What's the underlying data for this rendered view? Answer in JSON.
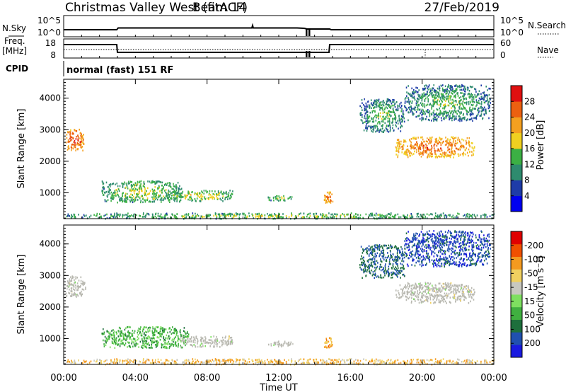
{
  "header": {
    "station": "Christmas Valley West (fitACF)",
    "beam": "Beam 14",
    "date": "27/Feb/2019"
  },
  "sky_panel": {
    "left_label": "N.Sky",
    "left_ticks": [
      "10^5",
      "10^0"
    ],
    "right_label": "N.Search",
    "right_ticks": [
      "10^5",
      "10^0"
    ]
  },
  "freq_panel": {
    "left_label": "Freq.",
    "left_unit": "[MHz]",
    "left_ticks": [
      "18",
      "8"
    ],
    "right_label": "Nave",
    "right_ticks": [
      "60",
      "0"
    ]
  },
  "cpid": {
    "label": "CPID",
    "text": "normal (fast) 151 RF"
  },
  "colors": {
    "power": [
      "#0000f0",
      "#1e3ca8",
      "#2e8b6e",
      "#3cb044",
      "#f0d020",
      "#f4a020",
      "#ec6010",
      "#e01010"
    ],
    "velocity": [
      "#e00000",
      "#f05000",
      "#f49a20",
      "#f0d060",
      "#c8c8c0",
      "#7ee060",
      "#40b040",
      "#1e6f3c",
      "#2050b0",
      "#1a1ae0"
    ],
    "ground_scatter": "#b8b8b0"
  },
  "chart_data": [
    {
      "type": "heatmap",
      "parameter": "Power",
      "ylabel": "Slant Range [km]",
      "yticks": [
        "1000",
        "2000",
        "3000",
        "4000"
      ],
      "ylim": [
        180,
        4600
      ],
      "xlim_hours": [
        0,
        24
      ],
      "colorbar_label": "Power [dB]",
      "colorbar_ticks": [
        "4",
        "8",
        "12",
        "16",
        "20",
        "24",
        "28"
      ],
      "colorbar_range": [
        0,
        32
      ],
      "echo_regions": [
        {
          "t0": 0.1,
          "t1": 1.1,
          "r0": 2350,
          "r1": 3050,
          "level": 22
        },
        {
          "t0": 2.1,
          "t1": 6.6,
          "r0": 720,
          "r1": 1400,
          "level": 11
        },
        {
          "t0": 5.7,
          "t1": 9.4,
          "r0": 760,
          "r1": 1100,
          "level": 12
        },
        {
          "t0": 11.3,
          "t1": 12.8,
          "r0": 770,
          "r1": 940,
          "level": 10
        },
        {
          "t0": 14.5,
          "t1": 15.0,
          "r0": 700,
          "r1": 1050,
          "level": 20
        },
        {
          "t0": 16.5,
          "t1": 19.0,
          "r0": 2950,
          "r1": 4000,
          "level": 8
        },
        {
          "t0": 18.5,
          "t1": 22.9,
          "r0": 2150,
          "r1": 2800,
          "level": 20
        },
        {
          "t0": 19.0,
          "t1": 23.8,
          "r0": 3300,
          "r1": 4450,
          "level": 8
        },
        {
          "t0": 0.0,
          "t1": 24.0,
          "r0": 200,
          "r1": 380,
          "level": 10
        }
      ]
    },
    {
      "type": "heatmap",
      "parameter": "Velocity",
      "ylabel": "Slant Range [km]",
      "yticks": [
        "1000",
        "2000",
        "3000",
        "4000"
      ],
      "ylim": [
        180,
        4600
      ],
      "xlim_hours": [
        0,
        24
      ],
      "xlabel": "Time UT",
      "xticks": [
        "00:00",
        "04:00",
        "08:00",
        "12:00",
        "16:00",
        "20:00",
        "00:00"
      ],
      "colorbar_label": "Velocity [m s⁻¹]",
      "colorbar_ticks": [
        "-200",
        "-100",
        "-50",
        "-15",
        "15",
        "50",
        "100",
        "200"
      ],
      "echo_regions": [
        {
          "t0": 0.1,
          "t1": 1.2,
          "r0": 2350,
          "r1": 3000,
          "velocity": 0,
          "ground": true
        },
        {
          "t0": 2.1,
          "t1": 7.0,
          "r0": 720,
          "r1": 1400,
          "velocity": 70
        },
        {
          "t0": 6.5,
          "t1": 9.4,
          "r0": 760,
          "r1": 1100,
          "velocity": 0,
          "ground": true
        },
        {
          "t0": 11.3,
          "t1": 12.8,
          "r0": 770,
          "r1": 940,
          "velocity": 0,
          "ground": true
        },
        {
          "t0": 14.5,
          "t1": 15.0,
          "r0": 700,
          "r1": 1050,
          "velocity": -60
        },
        {
          "t0": 16.5,
          "t1": 19.0,
          "r0": 2950,
          "r1": 4000,
          "velocity": 150
        },
        {
          "t0": 18.5,
          "t1": 22.9,
          "r0": 2150,
          "r1": 2800,
          "velocity": 0,
          "ground": true
        },
        {
          "t0": 19.0,
          "t1": 23.8,
          "r0": 3300,
          "r1": 4450,
          "velocity": 180
        },
        {
          "t0": 0.0,
          "t1": 24.0,
          "r0": 200,
          "r1": 380,
          "velocity": -40
        }
      ]
    }
  ]
}
